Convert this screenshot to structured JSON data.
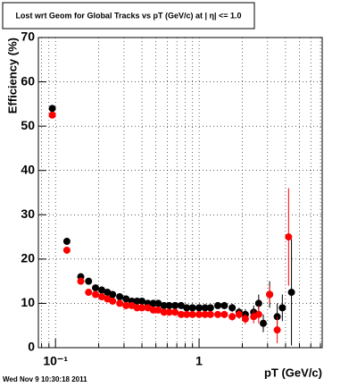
{
  "chart_data": {
    "type": "scatter",
    "title": "Lost wrt Geom for Global Tracks vs pT (GeV/c) at |  η| <= 1.0",
    "y_label": "Efficiency (%)",
    "x_label": "pT (GeV/c)",
    "timestamp": "Wed Nov  9 10:30:18 2011",
    "log_x": true,
    "grid": true,
    "xlim": [
      0.076,
      7.2
    ],
    "ylim": [
      0,
      70
    ],
    "xticks": [
      {
        "value": 0.1,
        "label": "10⁻¹"
      },
      1
    ],
    "xminor_ticks": [
      0.08,
      0.09,
      0.2,
      0.3,
      0.4,
      0.5,
      0.6,
      0.7,
      0.8,
      0.9,
      2,
      3,
      4,
      5,
      6,
      7
    ],
    "yticks": [
      0,
      10,
      20,
      30,
      40,
      50,
      60,
      70
    ],
    "series": [
      {
        "name": "black",
        "color": "#000000",
        "x": [
          0.095,
          0.12,
          0.15,
          0.17,
          0.19,
          0.21,
          0.23,
          0.25,
          0.28,
          0.31,
          0.34,
          0.37,
          0.4,
          0.44,
          0.48,
          0.52,
          0.57,
          0.62,
          0.68,
          0.75,
          0.82,
          0.9,
          1.0,
          1.1,
          1.2,
          1.35,
          1.5,
          1.7,
          1.9,
          2.1,
          2.4,
          2.6,
          2.8,
          3.1,
          3.5,
          3.8,
          4.4
        ],
        "values": [
          54,
          24,
          16,
          15,
          13.5,
          13,
          12.5,
          12,
          11.5,
          11,
          10.5,
          10.5,
          10.5,
          10,
          10,
          10,
          9.5,
          9.5,
          9.5,
          9.5,
          9,
          9,
          9,
          9,
          9,
          9.5,
          9.5,
          9,
          8,
          7.5,
          8,
          10,
          5.5,
          12,
          7,
          9,
          12.5
        ],
        "errors": [
          0.6,
          0.5,
          0.4,
          0.4,
          0.4,
          0.4,
          0.4,
          0.4,
          0.4,
          0.4,
          0.4,
          0.4,
          0.4,
          0.4,
          0.4,
          0.4,
          0.5,
          0.5,
          0.5,
          0.5,
          0.5,
          0.5,
          0.6,
          0.6,
          0.6,
          0.7,
          0.8,
          0.9,
          1,
          1.2,
          1.5,
          2,
          2,
          3,
          3,
          3,
          12
        ]
      },
      {
        "name": "red",
        "color": "#ff0000",
        "x": [
          0.095,
          0.12,
          0.15,
          0.17,
          0.19,
          0.21,
          0.23,
          0.25,
          0.28,
          0.31,
          0.34,
          0.37,
          0.4,
          0.44,
          0.48,
          0.52,
          0.57,
          0.62,
          0.68,
          0.75,
          0.82,
          0.9,
          1.0,
          1.1,
          1.2,
          1.35,
          1.5,
          1.7,
          1.9,
          2.1,
          2.4,
          2.6,
          3.1,
          3.5,
          4.2
        ],
        "values": [
          52.5,
          22,
          15,
          12.5,
          12,
          11.5,
          11,
          10.5,
          10,
          9.5,
          9.5,
          9,
          9,
          9,
          8.5,
          8.5,
          8,
          8,
          8,
          7.5,
          7.5,
          7.5,
          7.5,
          7.5,
          7.5,
          7.5,
          7.5,
          7,
          7.5,
          6.5,
          7,
          7.5,
          12,
          4,
          25
        ],
        "errors": [
          0.6,
          0.5,
          0.4,
          0.4,
          0.4,
          0.4,
          0.4,
          0.4,
          0.4,
          0.4,
          0.4,
          0.4,
          0.4,
          0.4,
          0.4,
          0.4,
          0.5,
          0.5,
          0.5,
          0.5,
          0.5,
          0.5,
          0.6,
          0.6,
          0.6,
          0.7,
          0.8,
          0.9,
          1,
          1.2,
          1.5,
          2,
          2,
          3,
          11
        ]
      }
    ]
  }
}
